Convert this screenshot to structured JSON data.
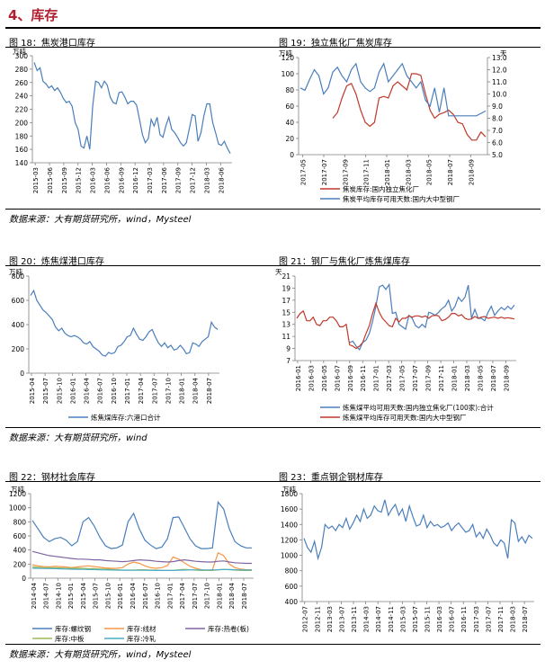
{
  "section": {
    "title": "4、库存"
  },
  "sources": {
    "src1": "数据来源：大有期货研究所，wind，Mysteel",
    "src2": "数据来源：大有期货研究所，wind",
    "src3": "数据来源：大有期货研究所，wind，Mysteel"
  },
  "titles": {
    "c18": "图 18：焦炭港口库存",
    "c19": "图 19：独立焦化厂焦炭库存",
    "c20": "图 20：炼焦煤港口库存",
    "c21": "图 21：钢厂与焦化厂炼焦煤库存",
    "c22": "图 22：钢材社会库存",
    "c23": "图 23：重点钢企钢材库存"
  },
  "colors": {
    "blue": "#4a7ebb",
    "red": "#c0392b",
    "green": "#9bbb59",
    "purple": "#8064a2",
    "cyan": "#4bacc6",
    "orange": "#f79646",
    "axis": "#7f7f7f",
    "title": "#b01e2f"
  },
  "chart_data": [
    {
      "id": "c18",
      "type": "line",
      "ylabel": "万吨",
      "ylim": [
        140,
        300
      ],
      "yticks": [
        140,
        160,
        180,
        200,
        220,
        240,
        260,
        280,
        300
      ],
      "xticks": [
        "2015-03",
        "2015-06",
        "2015-09",
        "2015-12",
        "2016-03",
        "2016-06",
        "2016-09",
        "2016-12",
        "2017-03",
        "2017-06",
        "2017-09",
        "2017-12",
        "2018-03",
        "2018-06"
      ],
      "series": [
        {
          "values": [
            290,
            278,
            282,
            262,
            258,
            252,
            255,
            248,
            252,
            245,
            236,
            230,
            232,
            224,
            200,
            190,
            165,
            162,
            180,
            160,
            225,
            262,
            260,
            252,
            262,
            256,
            238,
            230,
            228,
            245,
            246,
            238,
            228,
            232,
            232,
            226,
            205,
            182,
            170,
            176,
            205,
            195,
            208,
            182,
            178,
            195,
            208,
            190,
            185,
            178,
            170,
            165,
            170,
            190,
            212,
            210,
            172,
            185,
            210,
            228,
            228,
            200,
            185,
            168,
            166,
            172,
            162,
            154
          ]
        }
      ]
    },
    {
      "id": "c19",
      "type": "line",
      "ylabel": "万吨",
      "ylim": [
        0,
        120
      ],
      "yticks": [
        0,
        20,
        40,
        60,
        80,
        100,
        120
      ],
      "y2label": "天",
      "y2lim": [
        5.0,
        13.0
      ],
      "y2ticks": [
        "5.0",
        "6.0",
        "7.0",
        "8.0",
        "9.0",
        "10.0",
        "11.0",
        "12.0",
        "13.0"
      ],
      "xticks": [
        "2017-05",
        "2017-07",
        "2017-09",
        "2017-11",
        "2018-01",
        "2018-03",
        "2018-05",
        "2018-07",
        "2018-09"
      ],
      "series": [
        {
          "name": "焦炭库存:国内独立焦化厂",
          "axis": "left",
          "values": [
            null,
            null,
            null,
            null,
            null,
            null,
            null,
            45,
            52,
            70,
            85,
            88,
            75,
            55,
            40,
            35,
            40,
            70,
            72,
            70,
            85,
            90,
            85,
            80,
            100,
            100,
            98,
            75,
            55,
            45,
            50,
            52,
            55,
            50,
            40,
            38,
            25,
            18,
            18,
            28,
            22
          ]
        },
        {
          "name": "焦炭平均库存可用天数:国内大中型钢厂",
          "axis": "right",
          "values": [
            10.5,
            10.3,
            11.2,
            12.0,
            11.5,
            10.0,
            10.5,
            11.8,
            12.2,
            11.5,
            11.0,
            12.0,
            12.5,
            11.0,
            10.5,
            10.2,
            10.5,
            11.8,
            12.5,
            11.0,
            11.5,
            12.0,
            12.5,
            11.5,
            11.0,
            10.5,
            11.0,
            9.5,
            9.0,
            10.5,
            8.5,
            10.5,
            8.2,
            8.2,
            8.2,
            8.2,
            8.2,
            8.2,
            8.2,
            8.4,
            8.6
          ]
        }
      ]
    },
    {
      "id": "c20",
      "type": "line",
      "ylabel": "万吨",
      "ylim": [
        0,
        800
      ],
      "yticks": [
        0,
        200,
        400,
        600,
        800
      ],
      "xticks": [
        "2015-04",
        "2015-07",
        "2015-10",
        "2016-01",
        "2016-04",
        "2016-07",
        "2016-10",
        "2017-01",
        "2017-04",
        "2017-07",
        "2017-10",
        "2018-01",
        "2018-04",
        "2018-07"
      ],
      "series": [
        {
          "name": "炼焦煤库存:六港口合计",
          "values": [
            640,
            680,
            600,
            560,
            520,
            500,
            470,
            440,
            380,
            350,
            370,
            330,
            310,
            300,
            310,
            300,
            280,
            250,
            240,
            260,
            220,
            200,
            180,
            150,
            140,
            170,
            160,
            170,
            220,
            230,
            260,
            300,
            310,
            370,
            320,
            280,
            270,
            300,
            340,
            360,
            300,
            250,
            220,
            250,
            210,
            230,
            190,
            200,
            230,
            200,
            160,
            170,
            250,
            240,
            220,
            260,
            280,
            300,
            420,
            380,
            360
          ]
        }
      ]
    },
    {
      "id": "c21",
      "type": "line",
      "ylabel": "天",
      "ylim": [
        7,
        21
      ],
      "yticks": [
        7,
        9,
        11,
        13,
        15,
        17,
        19,
        21
      ],
      "xticks": [
        "2016-01",
        "2016-03",
        "2016-05",
        "2016-07",
        "2016-09",
        "2016-11",
        "2017-01",
        "2017-03",
        "2017-05",
        "2017-07",
        "2017-09",
        "2017-11",
        "2018-01",
        "2018-03",
        "2018-05",
        "2018-07",
        "2018-09"
      ],
      "series": [
        {
          "name": "炼焦煤平均可用天数:国内独立焦化厂(100家):合计",
          "values": [
            null,
            null,
            null,
            null,
            null,
            null,
            null,
            null,
            null,
            null,
            null,
            null,
            null,
            null,
            null,
            null,
            10.0,
            10.2,
            9.4,
            8.8,
            10.0,
            10.4,
            11.5,
            13.5,
            16.0,
            19.2,
            19.5,
            18.8,
            19.6,
            14.8,
            15.0,
            13.0,
            12.6,
            12.2,
            14.5,
            14.0,
            12.8,
            12.4,
            13.0,
            12.5,
            15.0,
            14.8,
            14.5,
            15.0,
            15.6,
            16.0,
            17.0,
            15.2,
            16.0,
            17.5,
            16.8,
            17.5,
            19.5,
            14.0,
            15.5,
            14.0,
            14.0,
            13.6,
            15.0,
            16.0,
            14.5,
            15.2,
            15.8,
            15.4,
            16.0,
            15.5,
            16.2
          ]
        },
        {
          "name": "炼焦煤平均库存可用天数:国内大中型钢厂",
          "values": [
            14.0,
            14.8,
            15.2,
            13.6,
            13.6,
            14.2,
            13.0,
            12.8,
            13.6,
            13.6,
            14.2,
            14.2,
            13.6,
            12.6,
            12.6,
            13.0,
            9.6,
            9.4,
            9.0,
            9.4,
            10.0,
            11.5,
            12.8,
            14.8,
            16.5,
            15.0,
            14.0,
            13.4,
            12.8,
            12.6,
            14.0,
            13.4,
            14.0,
            14.0,
            14.4,
            14.2,
            14.4,
            14.4,
            14.2,
            14.4,
            14.0,
            14.4,
            14.5,
            14.4,
            13.6,
            13.8,
            14.2,
            14.8,
            14.8,
            14.4,
            14.6,
            14.0,
            13.8,
            13.9,
            14.3,
            14.0,
            14.2,
            14.3,
            14.0,
            14.1,
            14.2,
            14.0,
            14.2,
            14.0,
            14.1,
            14.0,
            13.9
          ]
        }
      ]
    },
    {
      "id": "c22",
      "type": "line",
      "ylabel": "万吨",
      "ylim": [
        0,
        1200
      ],
      "yticks": [
        0,
        200,
        400,
        600,
        800,
        1000,
        1200
      ],
      "xticks": [
        "2014-04",
        "2014-07",
        "2014-10",
        "2015-01",
        "2015-04",
        "2015-07",
        "2015-10",
        "2016-01",
        "2016-04",
        "2016-07",
        "2016-10",
        "2017-01",
        "2017-04",
        "2017-07",
        "2017-10",
        "2018-01",
        "2018-04",
        "2018-07"
      ],
      "series": [
        {
          "name": "库存:螺纹钢",
          "values": [
            820,
            700,
            580,
            520,
            560,
            580,
            540,
            460,
            520,
            800,
            860,
            740,
            580,
            460,
            420,
            430,
            470,
            800,
            920,
            700,
            540,
            470,
            420,
            440,
            560,
            860,
            870,
            720,
            560,
            460,
            420,
            420,
            430,
            1080,
            980,
            700,
            520,
            460,
            430,
            430
          ]
        },
        {
          "name": "库存:线材",
          "values": [
            190,
            175,
            165,
            160,
            170,
            165,
            160,
            150,
            160,
            170,
            175,
            165,
            155,
            145,
            140,
            140,
            150,
            200,
            230,
            210,
            175,
            150,
            140,
            150,
            180,
            300,
            270,
            220,
            170,
            140,
            120,
            110,
            120,
            360,
            320,
            200,
            150,
            130,
            120,
            120
          ]
        },
        {
          "name": "库存:热卷(板)",
          "values": [
            380,
            360,
            340,
            320,
            310,
            300,
            290,
            280,
            270,
            270,
            265,
            260,
            260,
            250,
            245,
            240,
            235,
            240,
            250,
            260,
            255,
            250,
            240,
            235,
            230,
            235,
            250,
            260,
            250,
            240,
            235,
            230,
            230,
            240,
            245,
            230,
            220,
            215,
            210,
            210
          ]
        },
        {
          "name": "库存:中板",
          "values": [
            160,
            155,
            150,
            150,
            150,
            145,
            140,
            140,
            140,
            140,
            135,
            135,
            130,
            130,
            125,
            120,
            115,
            115,
            115,
            120,
            120,
            115,
            115,
            110,
            110,
            110,
            120,
            125,
            120,
            115,
            110,
            110,
            110,
            120,
            125,
            120,
            115,
            110,
            110,
            110
          ]
        },
        {
          "name": "库存:冷轧",
          "values": [
            140,
            140,
            138,
            136,
            135,
            133,
            130,
            128,
            126,
            125,
            123,
            122,
            120,
            118,
            116,
            115,
            114,
            113,
            112,
            112,
            112,
            111,
            110,
            110,
            110,
            110,
            112,
            115,
            118,
            118,
            118,
            118,
            118,
            120,
            122,
            122,
            120,
            118,
            118,
            118
          ]
        }
      ]
    },
    {
      "id": "c23",
      "type": "line",
      "ylabel": "万吨",
      "ylim": [
        400,
        1800
      ],
      "yticks": [
        400,
        600,
        800,
        1000,
        1200,
        1400,
        1600,
        1800
      ],
      "xticks": [
        "2012-07",
        "2012-11",
        "2013-03",
        "2013-07",
        "2013-11",
        "2014-03",
        "2014-07",
        "2014-11",
        "2015-03",
        "2015-07",
        "2015-11",
        "2016-03",
        "2016-07",
        "2016-11",
        "2017-03",
        "2017-07",
        "2017-11",
        "2018-03",
        "2018-07"
      ],
      "series": [
        {
          "values": [
            1220,
            1100,
            1040,
            1180,
            960,
            1100,
            1400,
            1350,
            1380,
            1320,
            1400,
            1360,
            1480,
            1340,
            1420,
            1520,
            1440,
            1600,
            1480,
            1520,
            1640,
            1580,
            1560,
            1720,
            1520,
            1600,
            1660,
            1520,
            1600,
            1440,
            1640,
            1500,
            1380,
            1400,
            1520,
            1360,
            1440,
            1380,
            1400,
            1360,
            1380,
            1420,
            1320,
            1380,
            1420,
            1360,
            1300,
            1320,
            1400,
            1240,
            1300,
            1220,
            1340,
            1260,
            1160,
            1120,
            1200,
            1160,
            960,
            1460,
            1420,
            1180,
            1240,
            1160,
            1260,
            1220
          ]
        }
      ]
    }
  ]
}
